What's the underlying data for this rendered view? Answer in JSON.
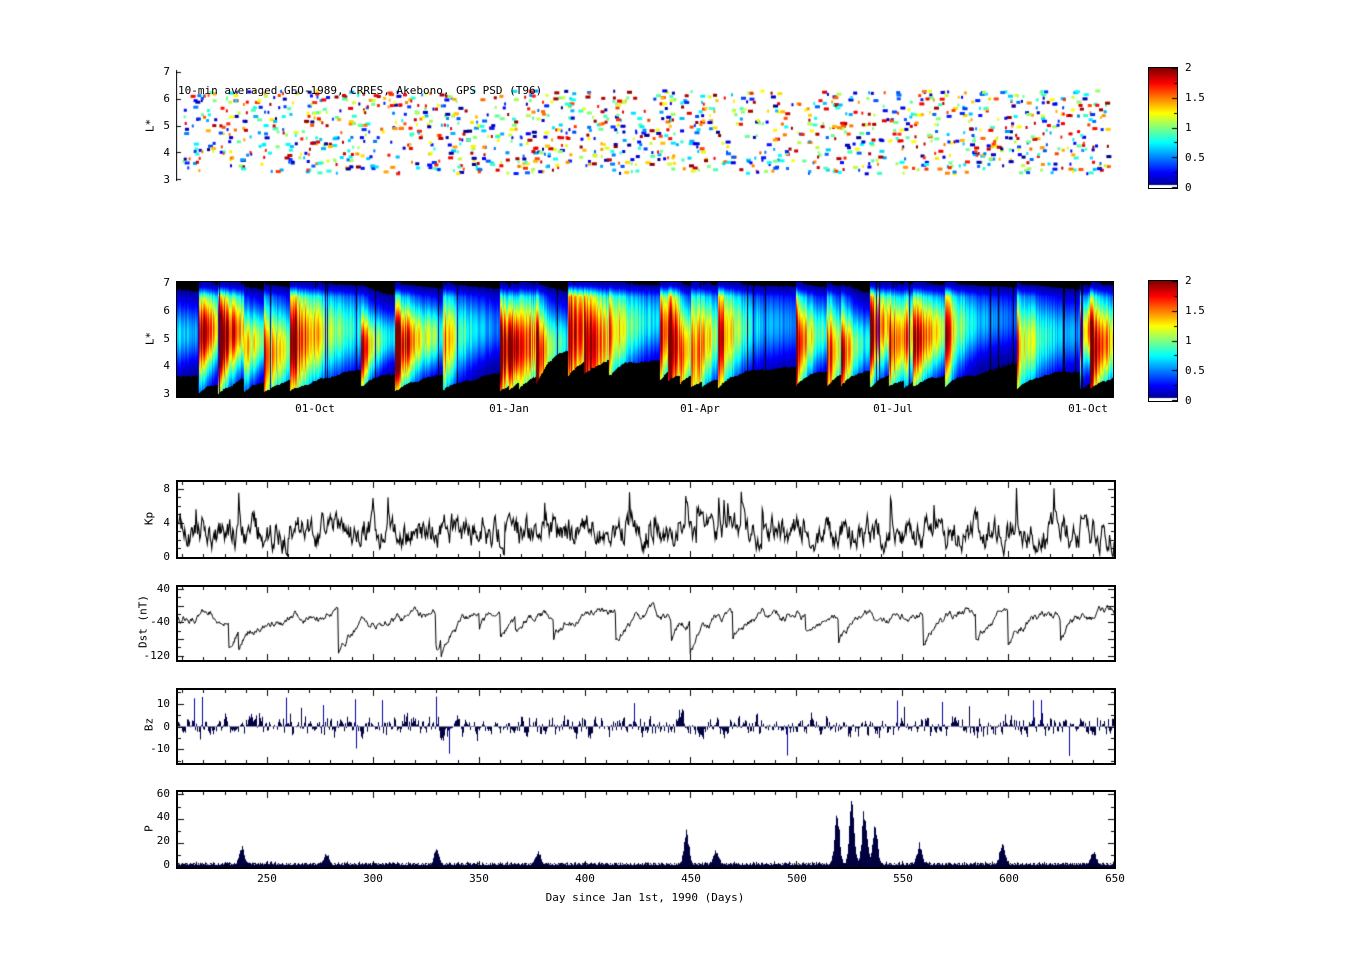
{
  "figure": {
    "background": "#ffffff",
    "line_color": "#000000",
    "bar_color": "#000040",
    "colormap": "jet"
  },
  "chart_data": [
    {
      "id": "psd-scatter",
      "type": "scatter",
      "title": "10-min averaged GEO-1989,  CRRES, Akebono, GPS PSD (T96)",
      "ylabel": "L*",
      "ylim": [
        3,
        7
      ],
      "yticks": [
        "7",
        "6",
        "5",
        "4",
        "3"
      ],
      "xlim_days": [
        208,
        650
      ],
      "colorbar": {
        "range": [
          0,
          2
        ],
        "ticks": [
          "2",
          "1.5",
          "1",
          "0.5",
          "0"
        ],
        "colormap": "jet"
      },
      "synthesis": {
        "seed": 11,
        "n_points": 1400,
        "l_range": [
          3.25,
          6.35
        ],
        "value_range": [
          0,
          2
        ],
        "marker": "dash"
      }
    },
    {
      "id": "psd-spectrogram",
      "type": "heatmap",
      "ylabel": "L*",
      "ylim": [
        3,
        7
      ],
      "yticks": [
        "7",
        "6",
        "5",
        "4",
        "3"
      ],
      "xlim_days": [
        208,
        650
      ],
      "xticks": [
        {
          "day": 273,
          "label": "01-Oct"
        },
        {
          "day": 365,
          "label": "01-Jan"
        },
        {
          "day": 455,
          "label": "01-Apr"
        },
        {
          "day": 546,
          "label": "01-Jul"
        },
        {
          "day": 638,
          "label": "01-Oct"
        }
      ],
      "colorbar": {
        "range": [
          0,
          2
        ],
        "ticks": [
          "2",
          "1.5",
          "1",
          "0.5",
          "0"
        ],
        "colormap": "jet"
      },
      "synthesis": {
        "seed": 29,
        "storm_rate": 0.045,
        "quiet_black_top_l": 4.6,
        "value_range": [
          0,
          2
        ],
        "no_data_color": "black"
      }
    },
    {
      "id": "kp",
      "type": "line",
      "ylabel": "Kp",
      "ylim": [
        0,
        8.8
      ],
      "yticks": [
        "8",
        "4",
        "0"
      ],
      "synthesis": {
        "seed": 41,
        "mean": 2.9,
        "min": 0,
        "max": 8.6
      }
    },
    {
      "id": "dst",
      "type": "line",
      "ylabel": "Dst (nT)",
      "ylim": [
        -130,
        45
      ],
      "yticks": [
        "40",
        "-40",
        "-120"
      ],
      "storm_minima": [
        {
          "day": 232,
          "dst": -100
        },
        {
          "day": 284,
          "dst": -115
        },
        {
          "day": 330,
          "dst": -105
        },
        {
          "day": 415,
          "dst": -85
        },
        {
          "day": 450,
          "dst": -120
        },
        {
          "day": 470,
          "dst": -90
        },
        {
          "day": 520,
          "dst": -95
        },
        {
          "day": 560,
          "dst": -105
        },
        {
          "day": 585,
          "dst": -90
        },
        {
          "day": 600,
          "dst": -95
        },
        {
          "day": 625,
          "dst": -80
        }
      ],
      "synthesis": {
        "seed": 53,
        "mean": -22
      }
    },
    {
      "id": "bz",
      "type": "line",
      "ylabel": "Bz",
      "ylim": [
        -16,
        16
      ],
      "yticks": [
        "10",
        "0",
        "-10"
      ],
      "color": "#000040",
      "synthesis": {
        "seed": 67,
        "sigma": 3.2,
        "spike_rate": 0.02,
        "spike_amp": 12
      }
    },
    {
      "id": "p",
      "type": "bar",
      "ylabel": "P",
      "ylim": [
        0,
        62
      ],
      "yticks": [
        "60",
        "40",
        "20",
        "0"
      ],
      "xlabel": "Day since Jan 1st, 1990 (Days)",
      "xticks": [
        "250",
        "300",
        "350",
        "400",
        "450",
        "500",
        "550",
        "600",
        "650"
      ],
      "color": "#000040",
      "pressure_peaks": [
        {
          "day": 238,
          "p": 14
        },
        {
          "day": 278,
          "p": 9
        },
        {
          "day": 330,
          "p": 12
        },
        {
          "day": 378,
          "p": 10
        },
        {
          "day": 448,
          "p": 27
        },
        {
          "day": 462,
          "p": 12
        },
        {
          "day": 519,
          "p": 42
        },
        {
          "day": 526,
          "p": 50
        },
        {
          "day": 532,
          "p": 46
        },
        {
          "day": 537,
          "p": 30
        },
        {
          "day": 558,
          "p": 16
        },
        {
          "day": 597,
          "p": 17
        },
        {
          "day": 640,
          "p": 10
        }
      ],
      "synthesis": {
        "seed": 79,
        "base": 3.5
      }
    }
  ]
}
